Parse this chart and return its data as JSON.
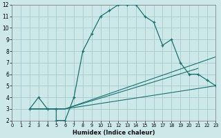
{
  "xlabel": "Humidex (Indice chaleur)",
  "bg_color": "#cce8e8",
  "grid_color": "#aacece",
  "line_color": "#1a7070",
  "xlim": [
    0,
    23
  ],
  "ylim": [
    2,
    12
  ],
  "xticks": [
    0,
    1,
    2,
    3,
    4,
    5,
    6,
    7,
    8,
    9,
    10,
    11,
    12,
    13,
    14,
    15,
    16,
    17,
    18,
    19,
    20,
    21,
    22,
    23
  ],
  "yticks": [
    2,
    3,
    4,
    5,
    6,
    7,
    8,
    9,
    10,
    11,
    12
  ],
  "line1_x": [
    2,
    3,
    4,
    5,
    5,
    6,
    7,
    8,
    9,
    10,
    11,
    12,
    13,
    14,
    15,
    16,
    17,
    18,
    19,
    20,
    21,
    22,
    23
  ],
  "line1_y": [
    3,
    4,
    3,
    3,
    2,
    2,
    4,
    8,
    9.5,
    11,
    11.5,
    12,
    12,
    12,
    11,
    10.5,
    8.5,
    9,
    7,
    6,
    6,
    5.5,
    5
  ],
  "line2_x": [
    2,
    3,
    4,
    5,
    6,
    23
  ],
  "line2_y": [
    3,
    3,
    3,
    3,
    3,
    7.5
  ],
  "line3_x": [
    2,
    3,
    4,
    5,
    6,
    21
  ],
  "line3_y": [
    3,
    3,
    3,
    3,
    3,
    6.5
  ],
  "line4_x": [
    2,
    3,
    4,
    5,
    6,
    23
  ],
  "line4_y": [
    3,
    3,
    3,
    3,
    3,
    5
  ]
}
